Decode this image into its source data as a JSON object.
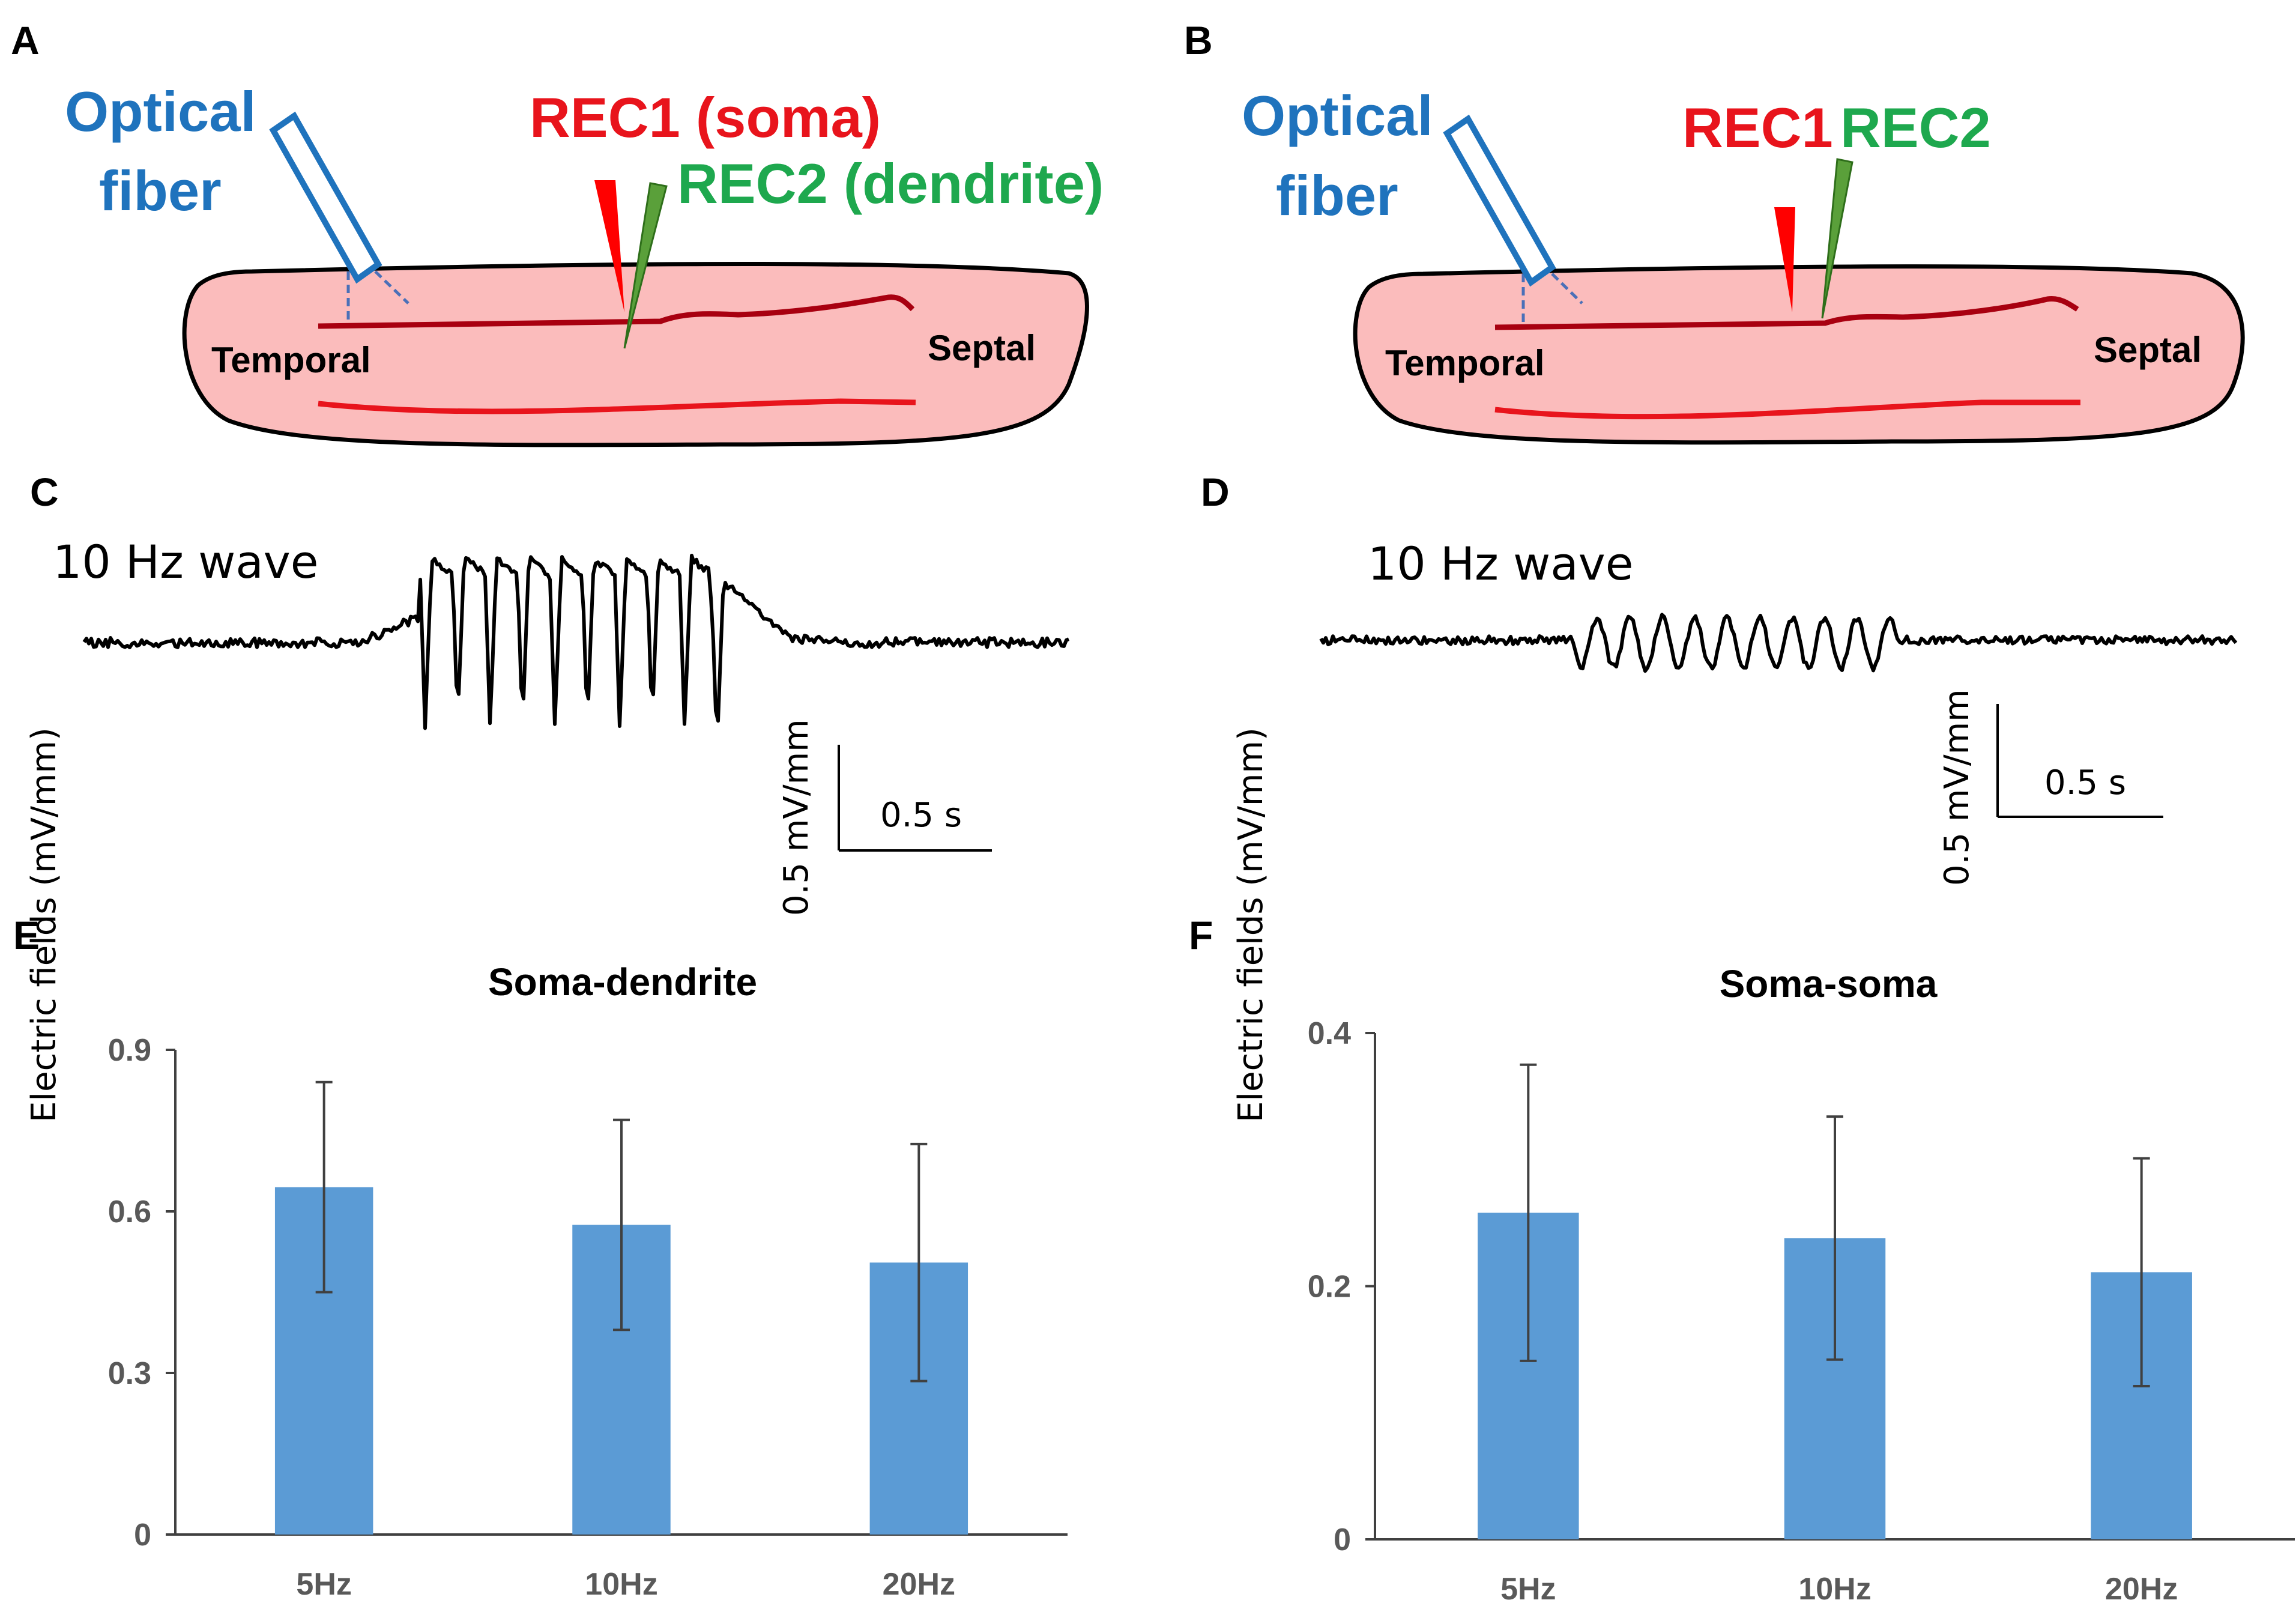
{
  "panels": {
    "A": "A",
    "B": "B",
    "C": "C",
    "D": "D",
    "E": "E",
    "F": "F"
  },
  "diagram_a": {
    "fiber_line1": "Optical",
    "fiber_line2": "fiber",
    "rec1": "REC1 (soma)",
    "rec2": "REC2 (dendrite)",
    "left_end": "Temporal",
    "right_end": "Septal"
  },
  "diagram_b": {
    "fiber_line1": "Optical",
    "fiber_line2": "fiber",
    "rec1": "REC1",
    "rec2": "REC2",
    "left_end": "Temporal",
    "right_end": "Septal"
  },
  "trace_c": {
    "title": "10 Hz wave",
    "scale_y": "0.5 mV/mm",
    "scale_x": "0.5 s"
  },
  "trace_d": {
    "title": "10 Hz wave",
    "scale_y": "0.5 mV/mm",
    "scale_x": "0.5 s"
  },
  "colors": {
    "bar": "#5b9bd5",
    "fiber": "#1f73bd",
    "rec1": "#e8141c",
    "rec2": "#1ea84e",
    "tissue": "#fbbcbc",
    "layer_dark": "#a80010",
    "layer_red": "#e8141c"
  },
  "chart_data": [
    {
      "type": "bar",
      "title": "Soma-dendrite",
      "categories": [
        "5Hz",
        "10Hz",
        "20Hz"
      ],
      "values": [
        0.645,
        0.575,
        0.505
      ],
      "errors": [
        0.195,
        0.195,
        0.22
      ],
      "ylabel": "Electric fields (mV/mm)",
      "xlabel": "",
      "ylim": [
        0,
        0.9
      ],
      "yticks": [
        "0",
        "0.3",
        "0.6",
        "0.9"
      ]
    },
    {
      "type": "bar",
      "title": "Soma-soma",
      "categories": [
        "5Hz",
        "10Hz",
        "20Hz"
      ],
      "values": [
        0.258,
        0.238,
        0.211
      ],
      "errors": [
        0.117,
        0.096,
        0.09
      ],
      "ylabel": "Electric fields (mV/mm)",
      "xlabel": "",
      "ylim": [
        0,
        0.4
      ],
      "yticks": [
        "0",
        "0.2",
        "0.4"
      ]
    }
  ]
}
